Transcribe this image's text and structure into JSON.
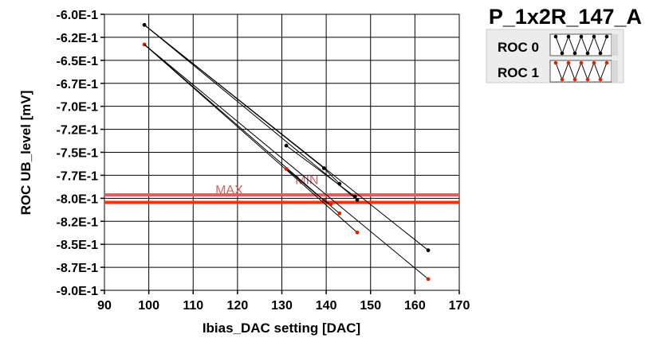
{
  "chart_data": {
    "type": "line",
    "title": "P_1x2R_147_A",
    "xlabel": "Ibias_DAC setting [DAC]",
    "ylabel": "ROC UB_level [mV]",
    "xlim": [
      90,
      170
    ],
    "ylim": [
      -0.9,
      -0.6
    ],
    "x_ticks": [
      90,
      100,
      110,
      120,
      130,
      140,
      150,
      160,
      170
    ],
    "y_ticks": [
      -0.6,
      -0.625,
      -0.65,
      -0.675,
      -0.7,
      -0.725,
      -0.75,
      -0.775,
      -0.8,
      -0.825,
      -0.85,
      -0.875,
      -0.9
    ],
    "y_tick_labels": [
      "-6.0E-1",
      "-6.2E-1",
      "-6.5E-1",
      "-6.7E-1",
      "-7.0E-1",
      "-7.2E-1",
      "-7.5E-1",
      "-7.7E-1",
      "-8.0E-1",
      "-8.2E-1",
      "-8.5E-1",
      "-8.7E-1",
      "-9.0E-1"
    ],
    "grid": true,
    "legend_position": "top-right",
    "series": [
      {
        "name": "ROC 0",
        "color": "#000000",
        "segments": [
          [
            [
              99,
              -0.6115
            ],
            [
              163,
              -0.8565
            ]
          ],
          [
            [
              99,
              -0.6115
            ],
            [
              147,
              -0.8018
            ]
          ],
          [
            [
              99,
              -0.6115
            ],
            [
              139.5,
              -0.7673
            ]
          ],
          [
            [
              131,
              -0.7427
            ],
            [
              146.5,
              -0.7982
            ]
          ],
          [
            [
              139.5,
              -0.7673
            ],
            [
              143,
              -0.7842
            ]
          ]
        ]
      },
      {
        "name": "ROC 1",
        "color": "#dd2200",
        "segments": [
          [
            [
              99,
              -0.6328
            ],
            [
              163,
              -0.8878
            ]
          ],
          [
            [
              99,
              -0.6328
            ],
            [
              147,
              -0.8372
            ]
          ],
          [
            [
              99,
              -0.6328
            ],
            [
              139.5,
              -0.8022
            ]
          ],
          [
            [
              131,
              -0.7681
            ],
            [
              143,
              -0.8164
            ]
          ],
          [
            [
              139.5,
              -0.8022
            ],
            [
              141,
              -0.8065
            ]
          ]
        ]
      }
    ],
    "limits": [
      {
        "label": "MAX",
        "value": -0.7962,
        "color": "#e06060"
      },
      {
        "label": "MIN",
        "value": -0.8045,
        "color": "#ff3300"
      }
    ],
    "limit_labels_extra": [
      {
        "label": "MIN",
        "x": 133,
        "y": -0.7845,
        "color": "#e06060"
      }
    ]
  }
}
